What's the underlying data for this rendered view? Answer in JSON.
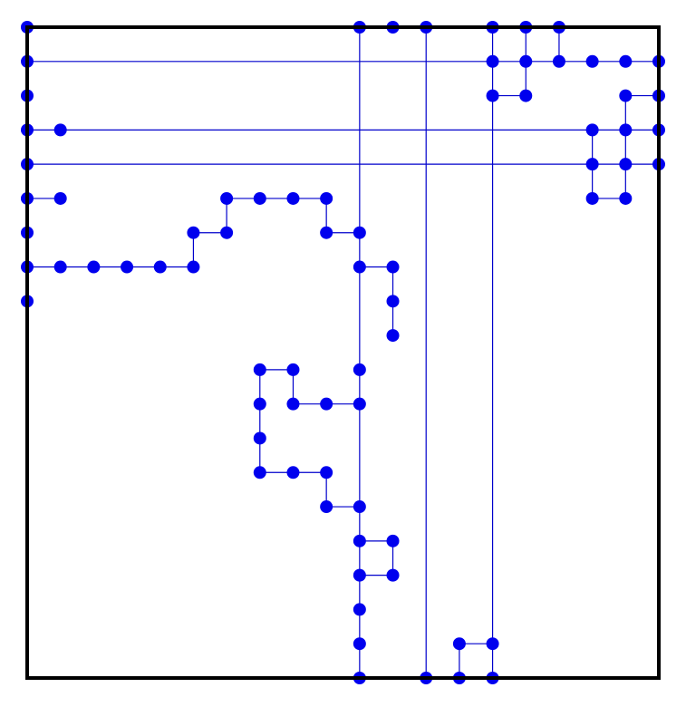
{
  "diagram": {
    "colors": {
      "node": "#0000ee",
      "edge": "#0000cc",
      "frame": "#000000",
      "background": "#ffffff"
    },
    "grid": {
      "cols": 20,
      "rows": 20
    },
    "nodes": [
      [
        0,
        0
      ],
      [
        10,
        0
      ],
      [
        11,
        0
      ],
      [
        12,
        0
      ],
      [
        14,
        0
      ],
      [
        15,
        0
      ],
      [
        16,
        0
      ],
      [
        0,
        1
      ],
      [
        14,
        1
      ],
      [
        15,
        1
      ],
      [
        16,
        1
      ],
      [
        17,
        1
      ],
      [
        18,
        1
      ],
      [
        19,
        1
      ],
      [
        0,
        2
      ],
      [
        14,
        2
      ],
      [
        15,
        2
      ],
      [
        18,
        2
      ],
      [
        19,
        2
      ],
      [
        0,
        3
      ],
      [
        1,
        3
      ],
      [
        17,
        3
      ],
      [
        18,
        3
      ],
      [
        19,
        3
      ],
      [
        0,
        4
      ],
      [
        17,
        4
      ],
      [
        18,
        4
      ],
      [
        19,
        4
      ],
      [
        0,
        5
      ],
      [
        1,
        5
      ],
      [
        6,
        5
      ],
      [
        7,
        5
      ],
      [
        8,
        5
      ],
      [
        9,
        5
      ],
      [
        17,
        5
      ],
      [
        18,
        5
      ],
      [
        0,
        6
      ],
      [
        5,
        6
      ],
      [
        6,
        6
      ],
      [
        9,
        6
      ],
      [
        10,
        6
      ],
      [
        0,
        7
      ],
      [
        1,
        7
      ],
      [
        2,
        7
      ],
      [
        3,
        7
      ],
      [
        4,
        7
      ],
      [
        5,
        7
      ],
      [
        10,
        7
      ],
      [
        11,
        7
      ],
      [
        0,
        8
      ],
      [
        11,
        8
      ],
      [
        11,
        9
      ],
      [
        7,
        10
      ],
      [
        8,
        10
      ],
      [
        10,
        10
      ],
      [
        7,
        11
      ],
      [
        8,
        11
      ],
      [
        9,
        11
      ],
      [
        10,
        11
      ],
      [
        7,
        12
      ],
      [
        7,
        13
      ],
      [
        8,
        13
      ],
      [
        9,
        13
      ],
      [
        9,
        14
      ],
      [
        10,
        14
      ],
      [
        10,
        15
      ],
      [
        11,
        15
      ],
      [
        10,
        16
      ],
      [
        11,
        16
      ],
      [
        10,
        17
      ],
      [
        10,
        18
      ],
      [
        13,
        18
      ],
      [
        14,
        18
      ],
      [
        10,
        19
      ],
      [
        12,
        19
      ],
      [
        13,
        19
      ],
      [
        14,
        19
      ]
    ],
    "edges": [
      [
        [
          0,
          1
        ],
        [
          19,
          1
        ]
      ],
      [
        [
          0,
          3
        ],
        [
          17,
          3
        ]
      ],
      [
        [
          0,
          4
        ],
        [
          19,
          4
        ]
      ],
      [
        [
          10,
          0
        ],
        [
          10,
          19
        ]
      ],
      [
        [
          12,
          0
        ],
        [
          12,
          19
        ]
      ],
      [
        [
          14,
          0
        ],
        [
          14,
          19
        ]
      ],
      [
        [
          15,
          0
        ],
        [
          15,
          2
        ]
      ],
      [
        [
          14,
          2
        ],
        [
          15,
          2
        ]
      ],
      [
        [
          16,
          0
        ],
        [
          16,
          1
        ]
      ],
      [
        [
          18,
          2
        ],
        [
          19,
          2
        ]
      ],
      [
        [
          18,
          2
        ],
        [
          18,
          5
        ]
      ],
      [
        [
          17,
          3
        ],
        [
          19,
          3
        ]
      ],
      [
        [
          17,
          3
        ],
        [
          17,
          5
        ]
      ],
      [
        [
          17,
          5
        ],
        [
          18,
          5
        ]
      ],
      [
        [
          0,
          5
        ],
        [
          1,
          5
        ]
      ],
      [
        [
          6,
          5
        ],
        [
          9,
          5
        ]
      ],
      [
        [
          6,
          5
        ],
        [
          6,
          6
        ]
      ],
      [
        [
          5,
          6
        ],
        [
          6,
          6
        ]
      ],
      [
        [
          5,
          6
        ],
        [
          5,
          7
        ]
      ],
      [
        [
          9,
          5
        ],
        [
          9,
          6
        ]
      ],
      [
        [
          9,
          6
        ],
        [
          10,
          6
        ]
      ],
      [
        [
          0,
          7
        ],
        [
          5,
          7
        ]
      ],
      [
        [
          10,
          7
        ],
        [
          11,
          7
        ]
      ],
      [
        [
          11,
          7
        ],
        [
          11,
          9
        ]
      ],
      [
        [
          7,
          10
        ],
        [
          8,
          10
        ]
      ],
      [
        [
          8,
          10
        ],
        [
          8,
          11
        ]
      ],
      [
        [
          8,
          11
        ],
        [
          10,
          11
        ]
      ],
      [
        [
          7,
          10
        ],
        [
          7,
          13
        ]
      ],
      [
        [
          7,
          13
        ],
        [
          9,
          13
        ]
      ],
      [
        [
          9,
          13
        ],
        [
          9,
          14
        ]
      ],
      [
        [
          9,
          14
        ],
        [
          10,
          14
        ]
      ],
      [
        [
          10,
          15
        ],
        [
          11,
          15
        ]
      ],
      [
        [
          11,
          15
        ],
        [
          11,
          16
        ]
      ],
      [
        [
          10,
          16
        ],
        [
          11,
          16
        ]
      ],
      [
        [
          13,
          18
        ],
        [
          14,
          18
        ]
      ],
      [
        [
          13,
          18
        ],
        [
          13,
          19
        ]
      ]
    ]
  }
}
